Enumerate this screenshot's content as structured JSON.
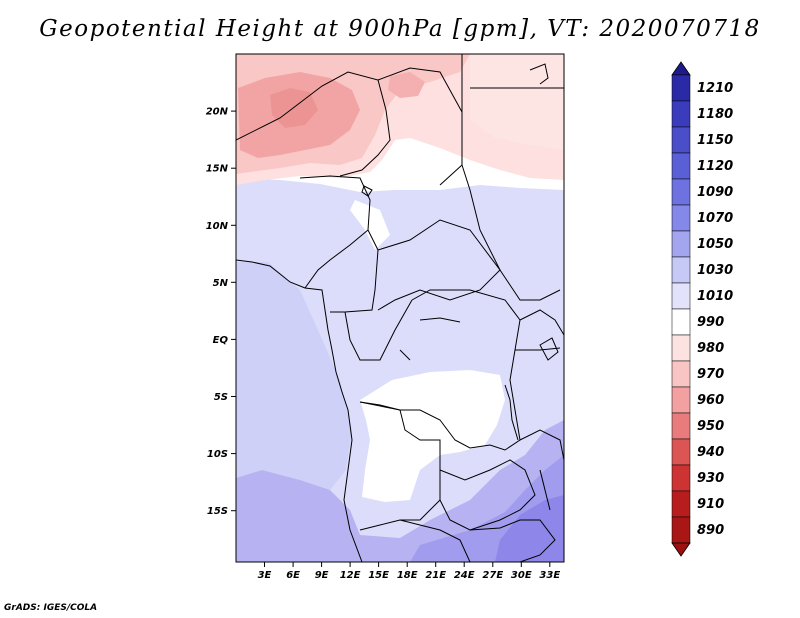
{
  "title": "Geopotential Height at 900hPa [gpm], VT: 2020070718",
  "footer": "GrADS: IGES/COLA",
  "map": {
    "lon_range": [
      0,
      34.5
    ],
    "lat_range": [
      -20,
      24.5
    ],
    "lat_labels": [
      "20N",
      "15N",
      "10N",
      "5N",
      "EQ",
      "5S",
      "10S",
      "15S"
    ],
    "lat_values": [
      20,
      15,
      10,
      5,
      0,
      -5,
      -10,
      -15
    ],
    "lon_labels": [
      "3E",
      "6E",
      "9E",
      "12E",
      "15E",
      "18E",
      "21E",
      "24E",
      "27E",
      "30E",
      "33E"
    ],
    "lon_values": [
      3,
      6,
      9,
      12,
      15,
      18,
      21,
      24,
      27,
      30,
      33
    ]
  },
  "colorbar": {
    "labels": [
      "1210",
      "1180",
      "1150",
      "1120",
      "1090",
      "1070",
      "1050",
      "1030",
      "1010",
      "990",
      "980",
      "970",
      "960",
      "950",
      "940",
      "930",
      "910",
      "890"
    ],
    "colors": [
      "#1e1a8c",
      "#2b2aa6",
      "#3a3cbb",
      "#4b4ec9",
      "#5b5fd6",
      "#6e72e0",
      "#8488e8",
      "#a3a6ee",
      "#c6c8f5",
      "#e2e3fb",
      "#ffffff",
      "#fde2e2",
      "#f9c4c4",
      "#f2a0a0",
      "#e87c7c",
      "#dc5555",
      "#cd3333",
      "#b81d1d",
      "#9d1010"
    ]
  }
}
